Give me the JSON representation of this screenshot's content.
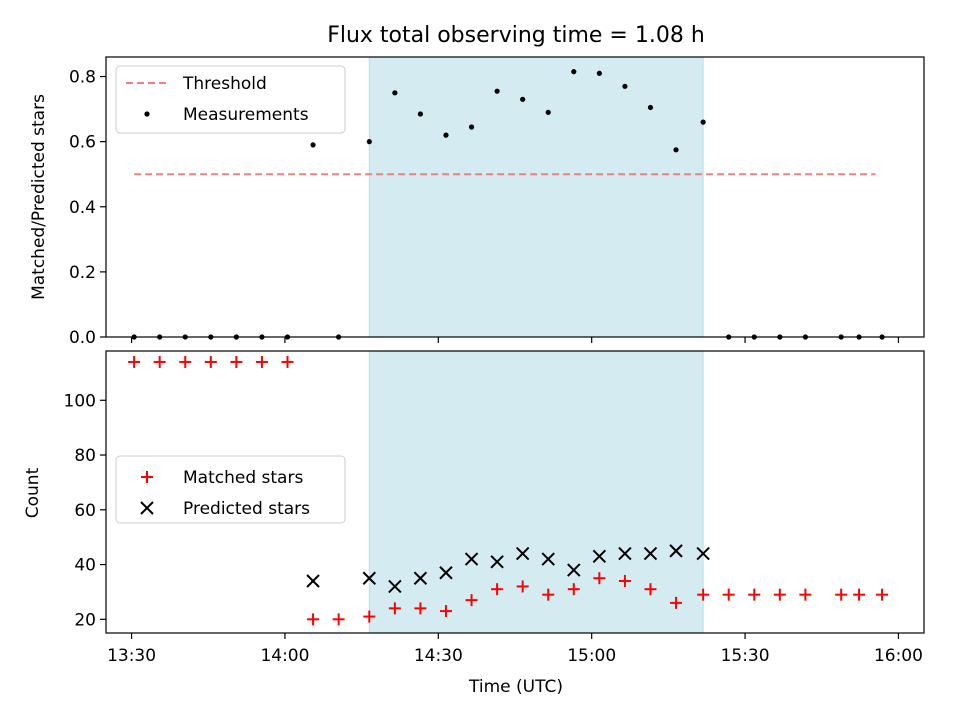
{
  "chart_data": [
    {
      "type": "scatter",
      "title": "Flux total observing time = 1.08 h",
      "xlabel": "",
      "ylabel": "Matched/Predicted stars",
      "xlim_minutes": [
        -5,
        155
      ],
      "ylim": [
        0,
        0.86
      ],
      "yticks": [
        0.0,
        0.2,
        0.4,
        0.6,
        0.8
      ],
      "ytick_labels": [
        "0.0",
        "0.2",
        "0.4",
        "0.6",
        "0.8"
      ],
      "highlight_span_minutes": [
        46.5,
        111.8
      ],
      "highlight_color": "#d4ebf1",
      "threshold": {
        "name": "Threshold",
        "value": 0.5,
        "x_range_minutes": [
          0.5,
          145.5
        ],
        "color": "#f08080"
      },
      "series": [
        {
          "name": "Measurements",
          "color": "#000000",
          "marker": "dot",
          "x_minutes": [
            0.5,
            5.5,
            10.5,
            15.5,
            20.5,
            25.5,
            30.5,
            35.5,
            40.5,
            46.5,
            51.5,
            56.5,
            61.5,
            66.5,
            71.5,
            76.5,
            81.5,
            86.5,
            91.5,
            96.5,
            101.5,
            106.5,
            111.8,
            116.8,
            121.8,
            126.8,
            131.8,
            138.8,
            142.3,
            146.8
          ],
          "values": [
            0,
            0,
            0,
            0,
            0,
            0,
            0,
            0.59,
            0,
            0.6,
            0.75,
            0.685,
            0.62,
            0.645,
            0.755,
            0.73,
            0.69,
            0.815,
            0.81,
            0.77,
            0.705,
            0.575,
            0.66,
            0,
            0,
            0,
            0,
            0,
            0,
            0
          ]
        }
      ],
      "legend": [
        "Threshold",
        "Measurements"
      ],
      "legend_position": "top-left"
    },
    {
      "type": "scatter",
      "title": "",
      "xlabel": "Time (UTC)",
      "ylabel": "Count",
      "xlim_minutes": [
        -5,
        155
      ],
      "ylim": [
        15,
        118
      ],
      "yticks": [
        20,
        40,
        60,
        80,
        100
      ],
      "ytick_labels": [
        "20",
        "40",
        "60",
        "80",
        "100"
      ],
      "xticks_minutes": [
        0,
        30,
        60,
        90,
        120,
        150
      ],
      "xtick_labels": [
        "13:30",
        "14:00",
        "14:30",
        "15:00",
        "15:30",
        "16:00"
      ],
      "highlight_span_minutes": [
        46.5,
        111.8
      ],
      "series": [
        {
          "name": "Matched stars",
          "color": "#ff0000",
          "marker": "plus",
          "x_minutes": [
            0.5,
            5.5,
            10.5,
            15.5,
            20.5,
            25.5,
            30.5,
            35.5,
            40.5,
            46.5,
            51.5,
            56.5,
            61.5,
            66.5,
            71.5,
            76.5,
            81.5,
            86.5,
            91.5,
            96.5,
            101.5,
            106.5,
            111.8,
            116.8,
            121.8,
            126.8,
            131.8,
            138.8,
            142.3,
            146.8
          ],
          "values": [
            114,
            114,
            114,
            114,
            114,
            114,
            114,
            20,
            20,
            21,
            24,
            24,
            23,
            27,
            31,
            32,
            29,
            31,
            35,
            34,
            31,
            26,
            29,
            29,
            29,
            29,
            29,
            29,
            29,
            29
          ]
        },
        {
          "name": "Predicted stars",
          "color": "#000000",
          "marker": "x",
          "x_minutes": [
            35.5,
            46.5,
            51.5,
            56.5,
            61.5,
            66.5,
            71.5,
            76.5,
            81.5,
            86.5,
            91.5,
            96.5,
            101.5,
            106.5,
            111.8
          ],
          "values": [
            34,
            35,
            32,
            35,
            37,
            42,
            41,
            44,
            42,
            38,
            43,
            44,
            44,
            45,
            44
          ]
        }
      ],
      "legend": [
        "Matched stars",
        "Predicted stars"
      ],
      "legend_position": "center-left"
    }
  ]
}
